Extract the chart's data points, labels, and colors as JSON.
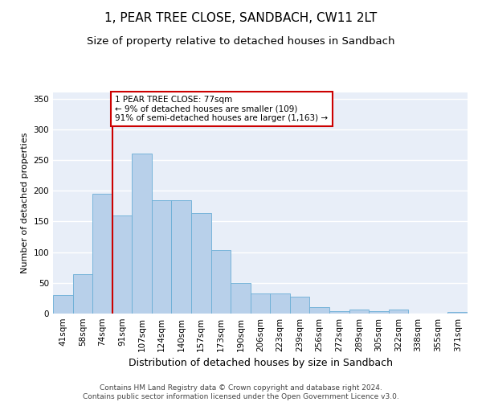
{
  "title": "1, PEAR TREE CLOSE, SANDBACH, CW11 2LT",
  "subtitle": "Size of property relative to detached houses in Sandbach",
  "xlabel": "Distribution of detached houses by size in Sandbach",
  "ylabel": "Number of detached properties",
  "categories": [
    "41sqm",
    "58sqm",
    "74sqm",
    "91sqm",
    "107sqm",
    "124sqm",
    "140sqm",
    "157sqm",
    "173sqm",
    "190sqm",
    "206sqm",
    "223sqm",
    "239sqm",
    "256sqm",
    "272sqm",
    "289sqm",
    "305sqm",
    "322sqm",
    "338sqm",
    "355sqm",
    "371sqm"
  ],
  "values": [
    30,
    64,
    195,
    160,
    260,
    185,
    185,
    163,
    103,
    50,
    33,
    33,
    28,
    10,
    4,
    6,
    4,
    6,
    0,
    0,
    3
  ],
  "bar_color": "#b8d0ea",
  "bar_edge_color": "#6aaed6",
  "property_line_x": 2.5,
  "property_line_color": "#cc0000",
  "annotation_text": "1 PEAR TREE CLOSE: 77sqm\n← 9% of detached houses are smaller (109)\n91% of semi-detached houses are larger (1,163) →",
  "annotation_box_color": "#cc0000",
  "ylim": [
    0,
    360
  ],
  "yticks": [
    0,
    50,
    100,
    150,
    200,
    250,
    300,
    350
  ],
  "background_color": "#e8eef8",
  "grid_color": "#ffffff",
  "footer_text": "Contains HM Land Registry data © Crown copyright and database right 2024.\nContains public sector information licensed under the Open Government Licence v3.0.",
  "title_fontsize": 11,
  "subtitle_fontsize": 9.5,
  "xlabel_fontsize": 9,
  "ylabel_fontsize": 8,
  "tick_fontsize": 7.5,
  "annotation_fontsize": 7.5,
  "footer_fontsize": 6.5
}
